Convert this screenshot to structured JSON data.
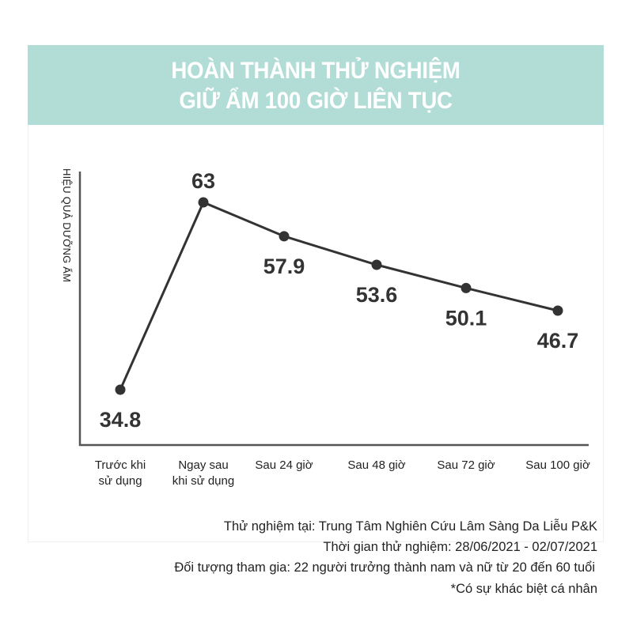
{
  "title": [
    "HOÀN THÀNH THỬ NGHIỆM",
    "GIỮ ẨM 100 GIỜ LIÊN TỤC"
  ],
  "colors": {
    "banner": "#b2ddd6",
    "line": "#333333",
    "text": "#222222"
  },
  "chart_data": {
    "type": "line",
    "ylabel": "HIỆU QUẢ DƯỠNG ẨM",
    "xlabel": "",
    "categories": [
      "Trước khi sử dụng",
      "Ngay sau khi sử dụng",
      "Sau 24 giờ",
      "Sau 48 giờ",
      "Sau 72 giờ",
      "Sau 100 giờ"
    ],
    "category_lines": [
      [
        "Trước khi",
        "sử dụng"
      ],
      [
        "Ngay sau",
        "khi sử dụng"
      ],
      [
        "Sau 24 giờ"
      ],
      [
        "Sau 48 giờ"
      ],
      [
        "Sau 72 giờ"
      ],
      [
        "Sau 100 giờ"
      ]
    ],
    "values": [
      34.8,
      63,
      57.9,
      53.6,
      50.1,
      46.7
    ],
    "data_labels": [
      "34.8",
      "63",
      "57.9",
      "53.6",
      "50.1",
      "46.7"
    ],
    "grid": false,
    "y_ticks_shown": false
  },
  "footer": [
    "Thử nghiệm tại: Trung Tâm Nghiên Cứu Lâm Sàng Da Liễu P&K",
    "Thời gian thử nghiệm: 28/06/2021 - 02/07/2021",
    "Đối tượng tham gia: 22 người trưởng thành nam và nữ từ 20 đến 60 tuổi",
    "*Có sự khác biệt cá nhân"
  ]
}
